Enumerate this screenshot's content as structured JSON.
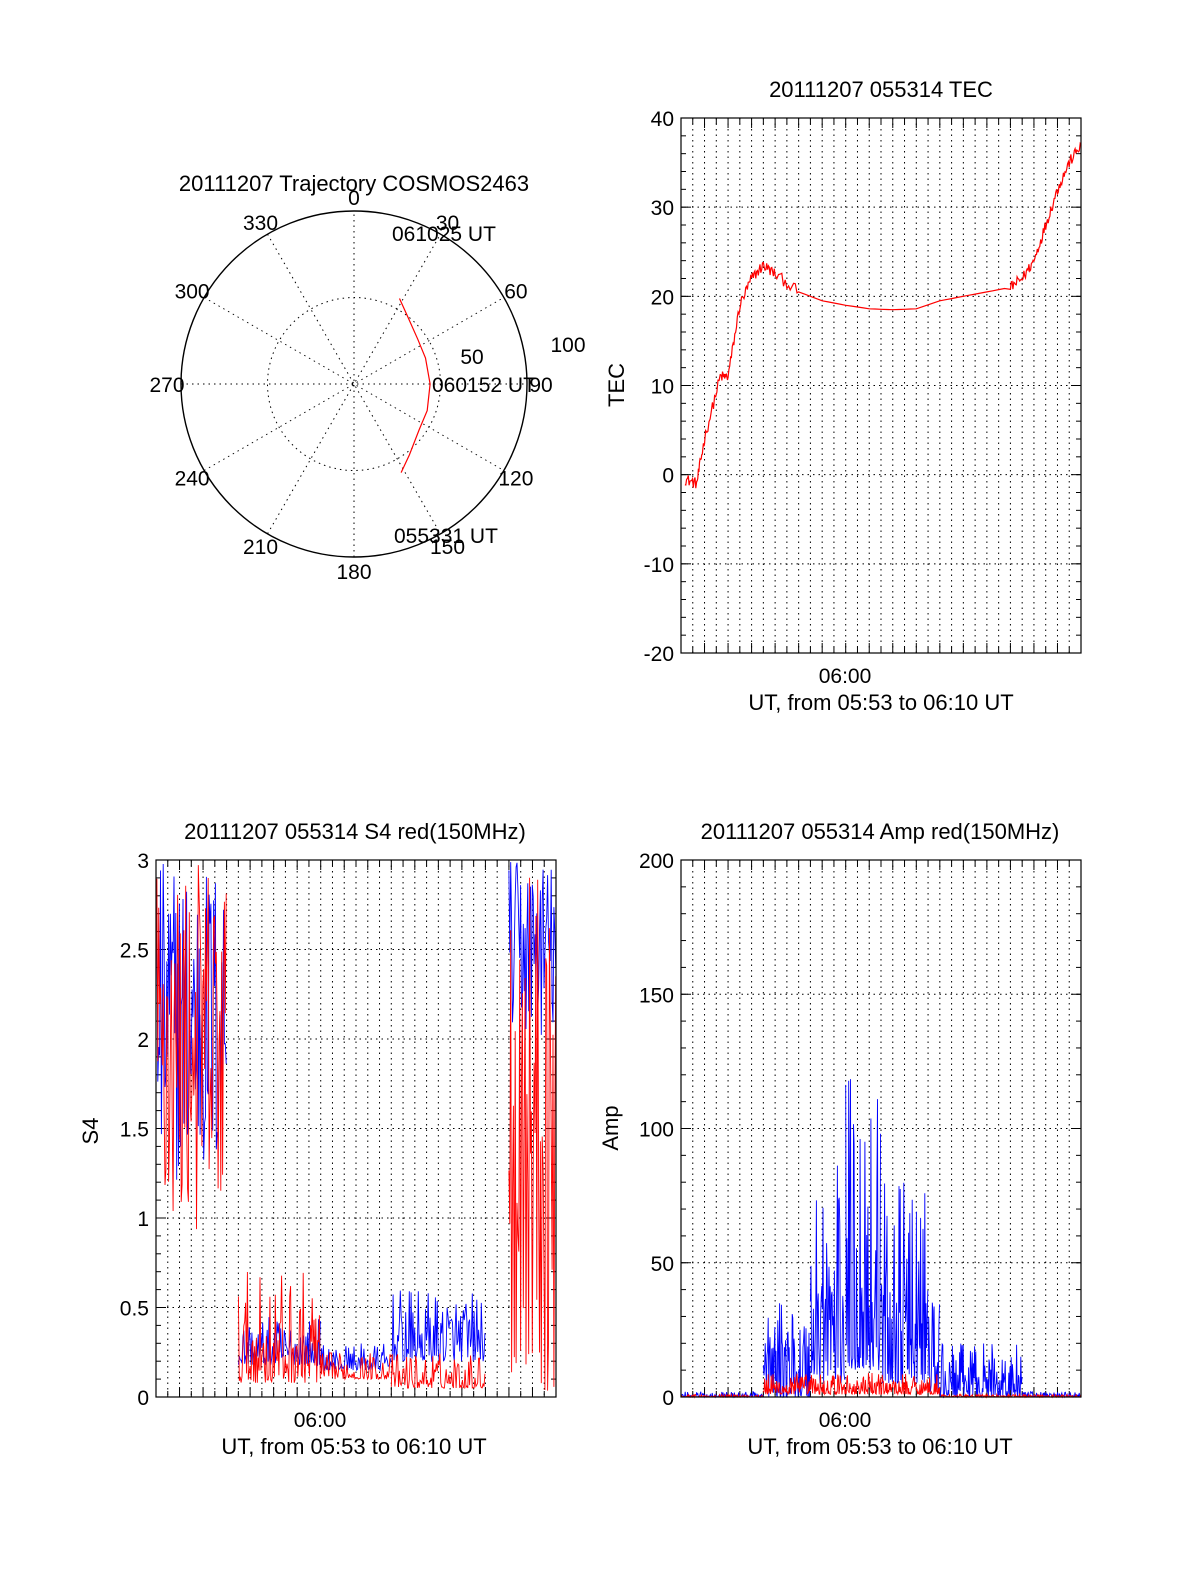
{
  "colors": {
    "red": "#ff0000",
    "blue": "#0000ff",
    "black": "#000000"
  },
  "chart_data": [
    {
      "type": "polar",
      "title": "20111207 Trajectory COSMOS2463",
      "angle_labels": [
        "0",
        "30",
        "60",
        "90",
        "120",
        "150",
        "180",
        "210",
        "240",
        "270",
        "300",
        "330"
      ],
      "radius_labels": [
        "50",
        "100"
      ],
      "rlim": [
        0,
        100
      ],
      "grid": true,
      "series": [
        {
          "color": "red",
          "points": [
            [
              152,
              58
            ],
            [
              142,
              52
            ],
            [
              125,
              46
            ],
            [
              110,
              45
            ],
            [
              90,
              44
            ],
            [
              70,
              44
            ],
            [
              55,
              45
            ],
            [
              38,
              50
            ],
            [
              28,
              56
            ]
          ]
        }
      ],
      "annotations": [
        {
          "text": "061025 UT",
          "at": "trajectory end (top)"
        },
        {
          "text": "060152 UT",
          "at": "trajectory middle"
        },
        {
          "text": "055331 UT",
          "at": "trajectory start (bottom)"
        }
      ]
    },
    {
      "type": "line",
      "title": "20111207 055314 TEC",
      "xlabel": "UT, from 05:53 to 06:10 UT",
      "ylabel": "TEC",
      "xlim": [
        "05:53",
        "06:10"
      ],
      "ylim": [
        -20,
        40
      ],
      "yticks": [
        -20,
        -10,
        0,
        10,
        20,
        30,
        40
      ],
      "xticks": [
        "06:00"
      ],
      "grid": true,
      "series": [
        {
          "color": "red",
          "x": [
            "05:53:10",
            "05:53:40",
            "05:54:00",
            "05:54:40",
            "05:55:00",
            "05:55:30",
            "05:56:00",
            "05:56:30",
            "05:57:00",
            "05:58:00",
            "05:59:00",
            "06:00:00",
            "06:01:00",
            "06:02:00",
            "06:03:00",
            "06:04:00",
            "06:05:00",
            "06:06:00",
            "06:07:00",
            "06:07:30",
            "06:08:00",
            "06:08:30",
            "06:09:00",
            "06:09:30",
            "06:10:00"
          ],
          "y": [
            -0.5,
            -1,
            4,
            11,
            11,
            19,
            22,
            23.5,
            22.5,
            20.5,
            19.5,
            19,
            18.6,
            18.5,
            18.6,
            19.5,
            20,
            20.5,
            21,
            22,
            24,
            28,
            32,
            35,
            37
          ]
        }
      ]
    },
    {
      "type": "line",
      "title": "20111207 055314 S4 red(150MHz)",
      "xlabel": "UT, from 05:53 to 06:10 UT",
      "ylabel": "S4",
      "xlim": [
        "05:53",
        "06:10"
      ],
      "ylim": [
        0,
        3
      ],
      "yticks": [
        "0",
        "0.5",
        "1",
        "1.5",
        "2",
        "2.5",
        "3"
      ],
      "xticks": [
        "06:00"
      ],
      "grid": true,
      "series": [
        {
          "color": "blue",
          "segments": [
            {
              "from": "05:53:00",
              "to": "05:56:00",
              "low": 1.2,
              "high": 3.0
            },
            {
              "from": "05:56:30",
              "to": "06:00:00",
              "low": 0.18,
              "high": 0.45
            },
            {
              "from": "06:00:00",
              "to": "06:03:00",
              "low": 0.15,
              "high": 0.3
            },
            {
              "from": "06:03:00",
              "to": "06:07:00",
              "low": 0.2,
              "high": 0.6
            },
            {
              "from": "06:08:00",
              "to": "06:10:00",
              "low": 2.0,
              "high": 3.0
            }
          ]
        },
        {
          "color": "red",
          "segments": [
            {
              "from": "05:53:00",
              "to": "05:56:00",
              "low": 0.9,
              "high": 3.0
            },
            {
              "from": "05:56:30",
              "to": "06:00:00",
              "low": 0.08,
              "high": 0.7
            },
            {
              "from": "06:00:00",
              "to": "06:03:00",
              "low": 0.1,
              "high": 0.25
            },
            {
              "from": "06:03:00",
              "to": "06:07:00",
              "low": 0.05,
              "high": 0.25
            },
            {
              "from": "06:08:00",
              "to": "06:10:00",
              "low": 0.0,
              "high": 3.0
            }
          ]
        }
      ]
    },
    {
      "type": "line",
      "title": "20111207 055314 Amp red(150MHz)",
      "xlabel": "UT, from 05:53 to 06:10 UT",
      "ylabel": "Amp",
      "xlim": [
        "05:53",
        "06:10"
      ],
      "ylim": [
        0,
        200
      ],
      "yticks": [
        0,
        50,
        100,
        150,
        200
      ],
      "xticks": [
        "06:00"
      ],
      "grid": true,
      "series": [
        {
          "color": "blue",
          "segments": [
            {
              "from": "05:53:00",
              "to": "05:56:30",
              "low": 0,
              "high": 2
            },
            {
              "from": "05:56:30",
              "to": "05:58:30",
              "low": 0,
              "high": 35
            },
            {
              "from": "05:58:30",
              "to": "06:00:00",
              "low": 5,
              "high": 90
            },
            {
              "from": "06:00:00",
              "to": "06:01:30",
              "low": 10,
              "high": 125
            },
            {
              "from": "06:01:30",
              "to": "06:03:30",
              "low": 5,
              "high": 80
            },
            {
              "from": "06:03:30",
              "to": "06:04:00",
              "low": 2,
              "high": 40
            },
            {
              "from": "06:04:00",
              "to": "06:07:30",
              "low": 0,
              "high": 20
            },
            {
              "from": "06:07:30",
              "to": "06:10:00",
              "low": 0,
              "high": 2
            }
          ]
        },
        {
          "color": "red",
          "segments": [
            {
              "from": "05:53:00",
              "to": "05:56:30",
              "low": 0,
              "high": 1
            },
            {
              "from": "05:56:30",
              "to": "06:04:00",
              "low": 1,
              "high": 9
            },
            {
              "from": "06:04:00",
              "to": "06:10:00",
              "low": 0,
              "high": 1
            }
          ]
        }
      ]
    }
  ]
}
